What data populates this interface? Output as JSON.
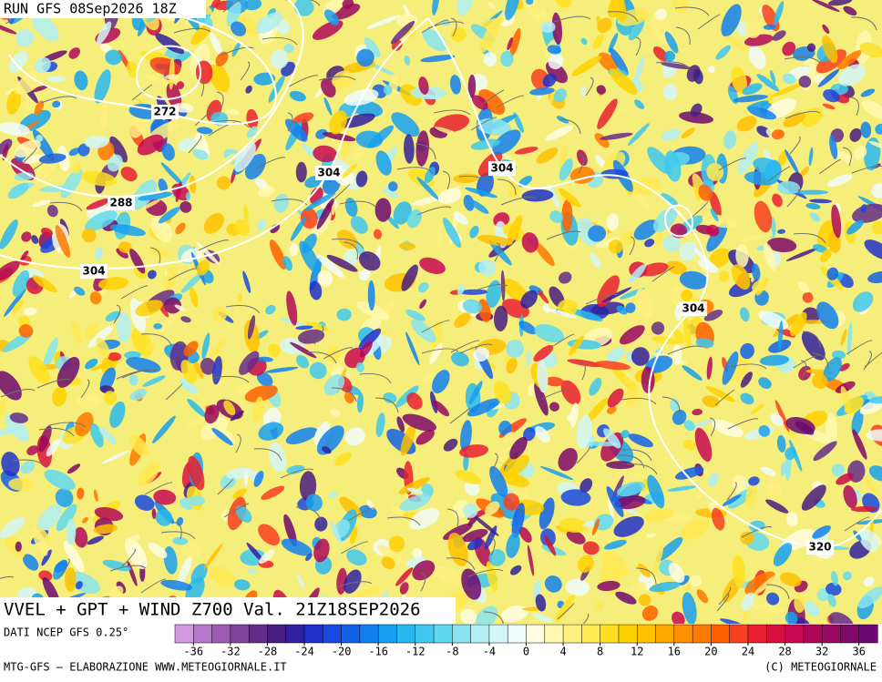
{
  "header": {
    "run": "RUN GFS 08Sep2026 18Z"
  },
  "map": {
    "title": "VVEL + GPT + WIND Z700 Val. 21Z18SEP2026",
    "contour_labels": [
      "272",
      "288",
      "304",
      "304",
      "304",
      "304",
      "320"
    ]
  },
  "colorbar": {
    "source": "DATI NCEP GFS 0.25°",
    "range": [
      -38,
      38
    ],
    "ticks": [
      -36,
      -32,
      -28,
      -24,
      -20,
      -16,
      -12,
      -8,
      -4,
      0,
      4,
      8,
      12,
      16,
      20,
      24,
      28,
      32,
      36
    ],
    "colors": [
      "#d49ae0",
      "#b878cc",
      "#9c5cb4",
      "#80449c",
      "#642c88",
      "#481c80",
      "#3020a0",
      "#2030c8",
      "#1848e0",
      "#1060e8",
      "#1080f0",
      "#18a0f0",
      "#28b8f0",
      "#40c8f0",
      "#60d8f0",
      "#88e4f0",
      "#b0eef4",
      "#d4f6f8",
      "#f0fcfc",
      "#fffce0",
      "#fff8b0",
      "#fff080",
      "#ffe850",
      "#ffe020",
      "#ffd000",
      "#ffc000",
      "#ffa800",
      "#ff9000",
      "#ff7800",
      "#ff6000",
      "#f84020",
      "#e82030",
      "#d81040",
      "#c80850",
      "#b00858",
      "#980860",
      "#800868",
      "#6c0870"
    ]
  },
  "footer": {
    "left": "MTG-GFS – ELABORAZIONE WWW.METEOGIORNALE.IT",
    "right": "(C) METEOGIORNALE"
  }
}
